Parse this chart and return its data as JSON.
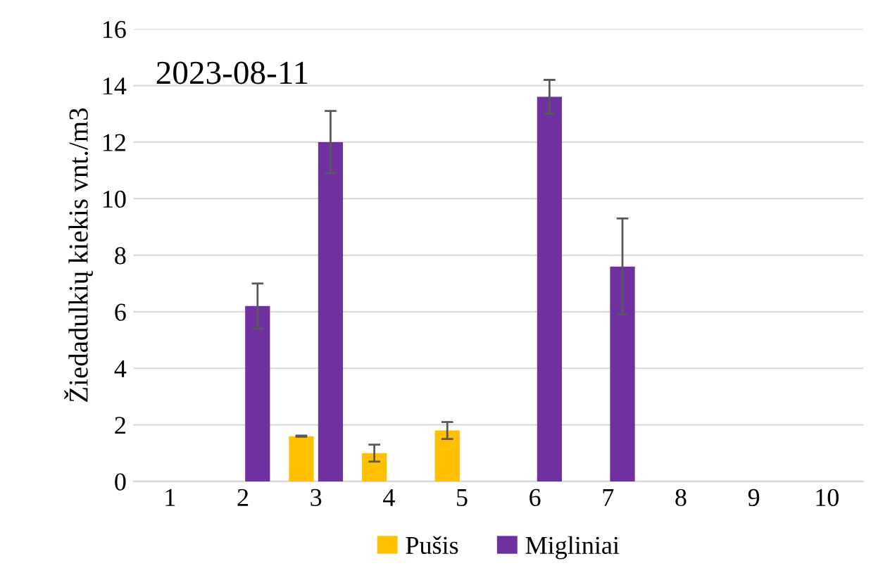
{
  "chart_data": {
    "type": "bar",
    "ylabel": "Žiedadulkių kiekis vnt./m3",
    "annotations": [
      "2023-08-11"
    ],
    "categories": [
      "1",
      "2",
      "3",
      "4",
      "5",
      "6",
      "7",
      "8",
      "9",
      "10"
    ],
    "series": [
      {
        "name": "Pušis",
        "color": "#ffc000",
        "values": [
          0,
          0,
          1.6,
          1.0,
          1.8,
          0,
          0,
          0,
          0,
          0
        ],
        "errors": [
          null,
          null,
          0.02,
          0.3,
          0.3,
          null,
          null,
          null,
          null,
          null
        ]
      },
      {
        "name": "Migliniai",
        "color": "#7030a0",
        "values": [
          0,
          6.2,
          12.0,
          0,
          0,
          13.6,
          7.6,
          0,
          0,
          0
        ],
        "errors": [
          null,
          0.8,
          1.1,
          null,
          null,
          0.6,
          1.7,
          null,
          null,
          null
        ]
      }
    ],
    "ylim": [
      0,
      16
    ],
    "yticks": [
      0,
      2,
      4,
      6,
      8,
      10,
      12,
      14,
      16
    ],
    "grid": "y",
    "legend": "bottom"
  }
}
